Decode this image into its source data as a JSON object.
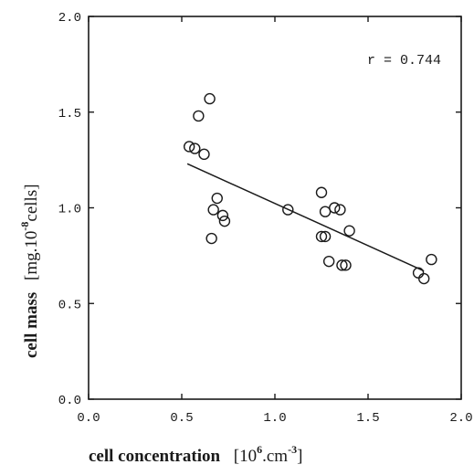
{
  "chart_data": {
    "type": "scatter",
    "xlabel_main": "cell concentration",
    "xlabel_unit_open": "[10",
    "xlabel_unit_exp": "6",
    "xlabel_unit_mid": ".cm",
    "xlabel_unit_exp2": "-3",
    "xlabel_unit_close": "]",
    "ylabel_main": "cell mass",
    "ylabel_unit_open": "[mg.10",
    "ylabel_unit_exp": "-8",
    "ylabel_unit_close": "cells]",
    "annotation": "r = 0.744",
    "xlim": [
      0.0,
      2.0
    ],
    "ylim": [
      0.0,
      2.0
    ],
    "x_ticks": [
      "0.0",
      "0.5",
      "1.0",
      "1.5",
      "2.0"
    ],
    "y_ticks": [
      "0.0",
      "0.5",
      "1.0",
      "1.5",
      "2.0"
    ],
    "points": [
      {
        "x": 0.54,
        "y": 1.32
      },
      {
        "x": 0.57,
        "y": 1.31
      },
      {
        "x": 0.59,
        "y": 1.48
      },
      {
        "x": 0.62,
        "y": 1.28
      },
      {
        "x": 0.65,
        "y": 1.57
      },
      {
        "x": 0.66,
        "y": 0.84
      },
      {
        "x": 0.67,
        "y": 0.99
      },
      {
        "x": 0.69,
        "y": 1.05
      },
      {
        "x": 0.72,
        "y": 0.96
      },
      {
        "x": 0.73,
        "y": 0.93
      },
      {
        "x": 1.07,
        "y": 0.99
      },
      {
        "x": 1.25,
        "y": 1.08
      },
      {
        "x": 1.25,
        "y": 0.85
      },
      {
        "x": 1.27,
        "y": 0.85
      },
      {
        "x": 1.27,
        "y": 0.98
      },
      {
        "x": 1.29,
        "y": 0.72
      },
      {
        "x": 1.32,
        "y": 1.0
      },
      {
        "x": 1.35,
        "y": 0.99
      },
      {
        "x": 1.36,
        "y": 0.7
      },
      {
        "x": 1.38,
        "y": 0.7
      },
      {
        "x": 1.4,
        "y": 0.88
      },
      {
        "x": 1.77,
        "y": 0.66
      },
      {
        "x": 1.8,
        "y": 0.63
      },
      {
        "x": 1.84,
        "y": 0.73
      }
    ],
    "regression_line": {
      "x": [
        0.53,
        1.8
      ],
      "y": [
        1.23,
        0.67
      ]
    },
    "grid": false,
    "legend": "none"
  }
}
